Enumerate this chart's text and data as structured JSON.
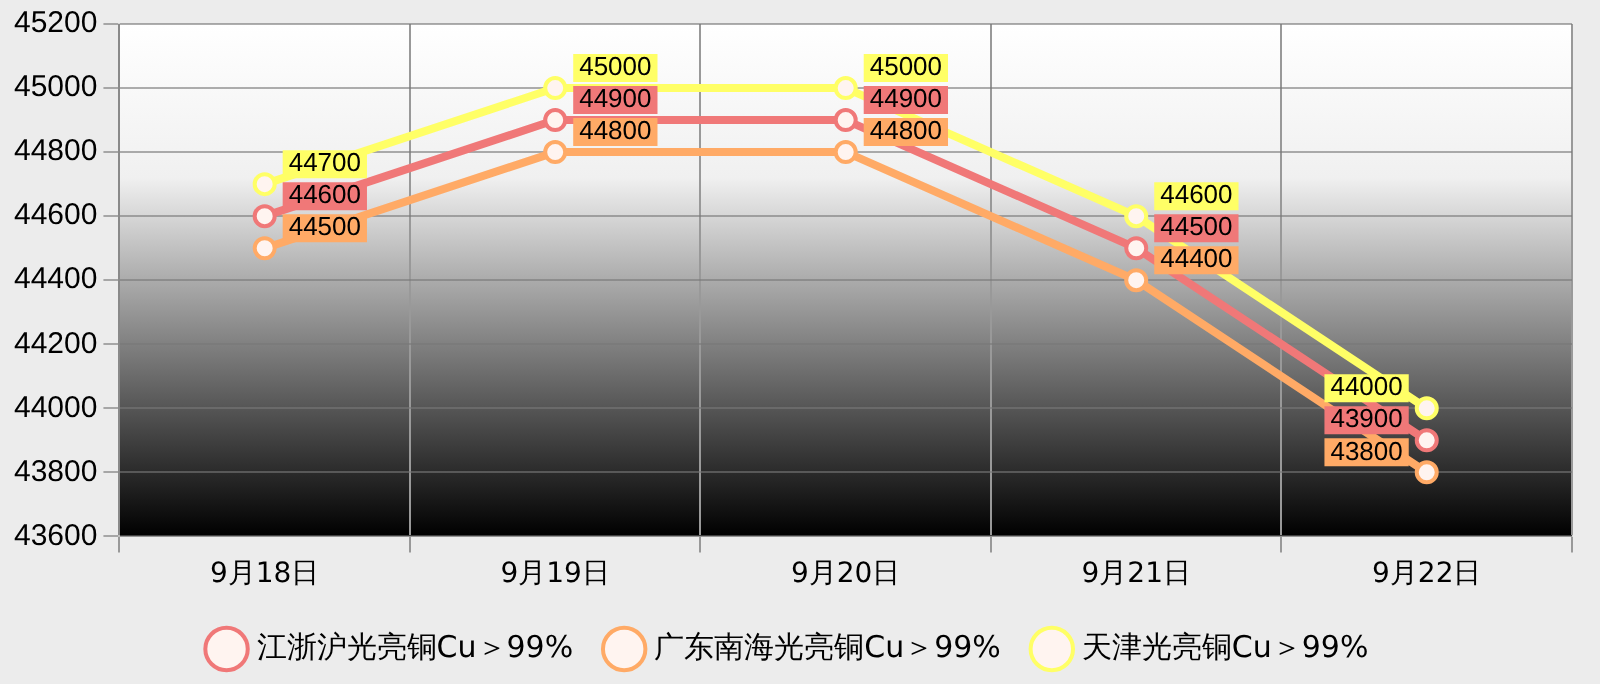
{
  "chart_data": {
    "type": "line",
    "categories": [
      "9月18日",
      "9月19日",
      "9月20日",
      "9月21日",
      "9月22日"
    ],
    "series": [
      {
        "name": "江浙沪光亮铜Cu＞99%",
        "color": "#f07878",
        "values": [
          44600,
          44900,
          44900,
          44500,
          43900
        ]
      },
      {
        "name": "广东南海光亮铜Cu＞99%",
        "color": "#ffaa66",
        "values": [
          44500,
          44800,
          44800,
          44400,
          43800
        ]
      },
      {
        "name": "天津光亮铜Cu＞99%",
        "color": "#ffff66",
        "values": [
          44700,
          45000,
          45000,
          44600,
          44000
        ]
      }
    ],
    "ylim": [
      43600,
      45200
    ],
    "yticks": [
      43600,
      43800,
      44000,
      44200,
      44400,
      44600,
      44800,
      45000,
      45200
    ],
    "grid": true,
    "legend": "bottom",
    "marker": "circle",
    "line_style": "solid",
    "data_labels": true
  }
}
